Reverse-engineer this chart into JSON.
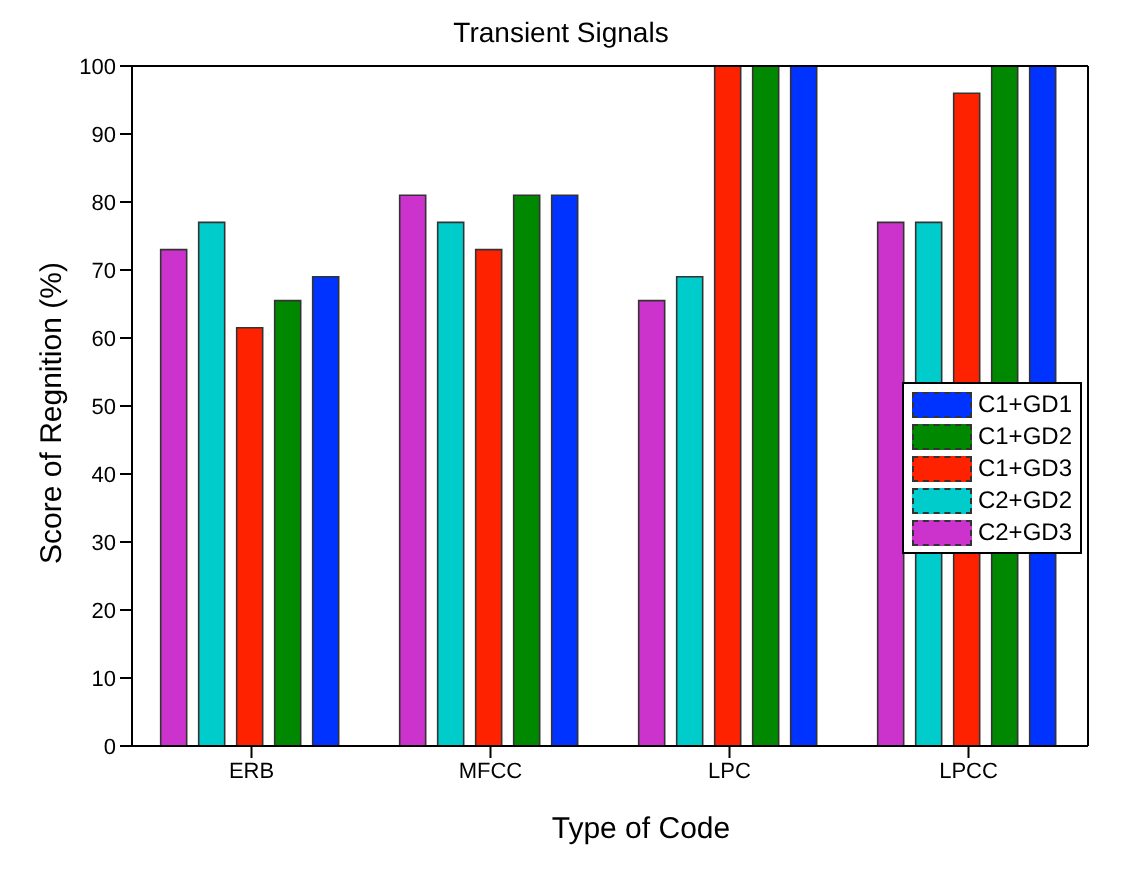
{
  "chart_data": {
    "type": "bar",
    "title": "Transient Signals",
    "xlabel": "Type of Code",
    "ylabel": "Score of Regnition (%)",
    "categories": [
      "ERB",
      "MFCC",
      "LPC",
      "LPCC"
    ],
    "series": [
      {
        "name": "C2+GD3",
        "color": "#cc33cc",
        "values": [
          73,
          81,
          65.5,
          77
        ]
      },
      {
        "name": "C2+GD2",
        "color": "#00cccc",
        "values": [
          77,
          77,
          69,
          77
        ]
      },
      {
        "name": "C1+GD3",
        "color": "#ff2200",
        "values": [
          61.5,
          73,
          100,
          96
        ]
      },
      {
        "name": "C1+GD2",
        "color": "#008800",
        "values": [
          65.5,
          81,
          100,
          100
        ]
      },
      {
        "name": "C1+GD1",
        "color": "#0033ff",
        "values": [
          69,
          81,
          100,
          100
        ]
      }
    ],
    "ylim": [
      0,
      100
    ],
    "yticks": [
      0,
      10,
      20,
      30,
      40,
      50,
      60,
      70,
      80,
      90,
      100
    ],
    "legend": "right"
  }
}
